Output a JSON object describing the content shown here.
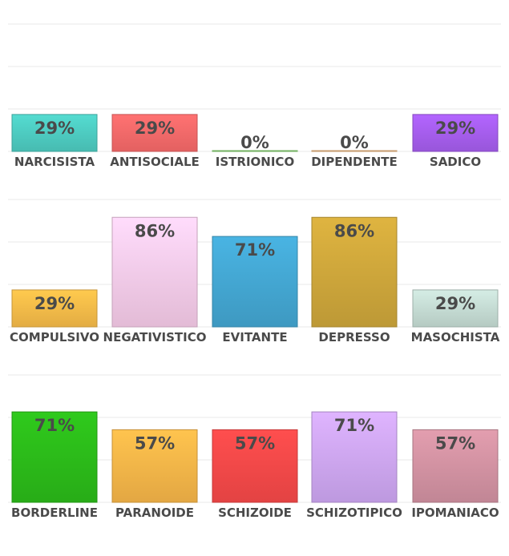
{
  "chart_data": [
    {
      "type": "bar",
      "title": "",
      "xlabel": "",
      "ylabel": "",
      "ylim": [
        0,
        100
      ],
      "grid": true,
      "categories": [
        "NARCISISTA",
        "ANTISOCIALE",
        "ISTRIONICO",
        "DIPENDENTE",
        "SADICO"
      ],
      "values": [
        29,
        29,
        0,
        0,
        29
      ],
      "labels": [
        "29%",
        "29%",
        "0%",
        "0%",
        "29%"
      ],
      "colors": [
        "#4fd0c5",
        "#fc6c6c",
        "#8fe07a",
        "#fcc68a",
        "#a95ff2"
      ]
    },
    {
      "type": "bar",
      "title": "",
      "xlabel": "",
      "ylabel": "",
      "ylim": [
        0,
        100
      ],
      "grid": true,
      "categories": [
        "COMPULSIVO",
        "NEGATIVISTICO",
        "EVITANTE",
        "DEPRESSO",
        "MASOCHISTA"
      ],
      "values": [
        29,
        86,
        71,
        86,
        29
      ],
      "labels": [
        "29%",
        "86%",
        "71%",
        "86%",
        "29%"
      ],
      "colors": [
        "#fcbf4a",
        "#fcd0ee",
        "#45aad6",
        "#d2aa3c",
        "#c9e0d8"
      ]
    },
    {
      "type": "bar",
      "title": "",
      "xlabel": "",
      "ylabel": "",
      "ylim": [
        0,
        100
      ],
      "grid": true,
      "categories": [
        "BORDERLINE",
        "PARANOIDE",
        "SCHIZOIDE",
        "SCHIZOTIPICO",
        "IPOMANIACO"
      ],
      "values": [
        71,
        57,
        57,
        71,
        57
      ],
      "labels": [
        "71%",
        "57%",
        "57%",
        "71%",
        "57%"
      ],
      "colors": [
        "#2cbf1a",
        "#fcb94a",
        "#fc4a4a",
        "#d2aaf8",
        "#d695a5"
      ]
    }
  ]
}
